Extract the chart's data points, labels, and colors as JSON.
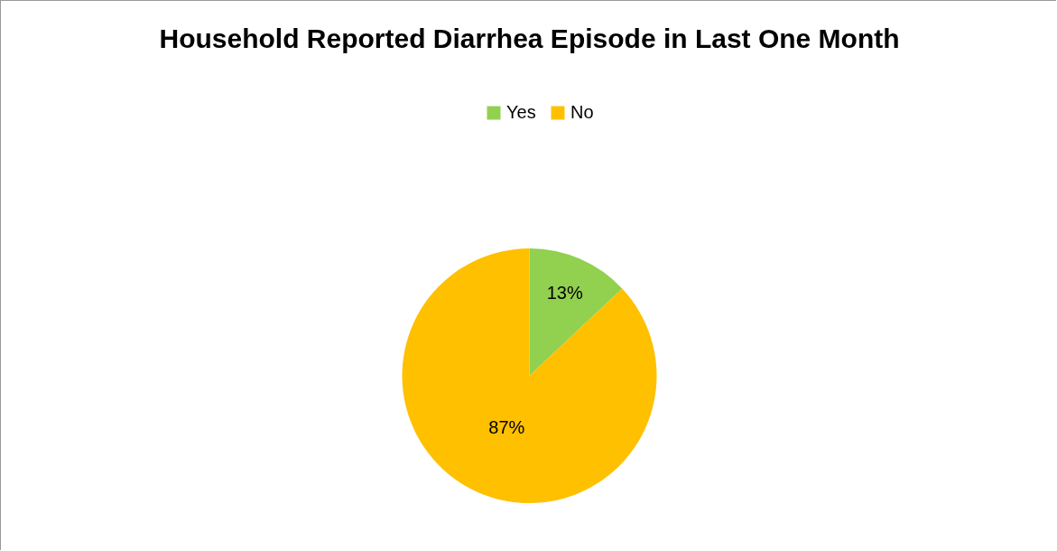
{
  "chart_data": {
    "type": "pie",
    "title": "Household Reported Diarrhea Episode in Last One Month",
    "categories": [
      "Yes",
      "No"
    ],
    "values": [
      13,
      87
    ],
    "colors": [
      "#92d050",
      "#ffc000"
    ],
    "value_labels": [
      "13%",
      "87%"
    ],
    "legend": "top"
  }
}
